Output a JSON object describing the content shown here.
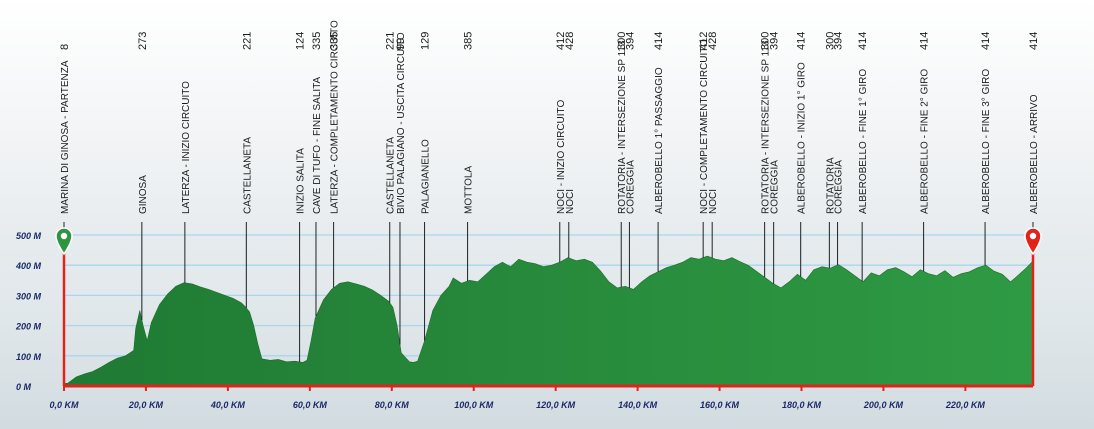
{
  "chart_data": {
    "type": "area",
    "x_unit": "KM",
    "y_unit": "M",
    "xlim": [
      0,
      236.5
    ],
    "ylim": [
      0,
      500
    ],
    "x_ticks": [
      {
        "value": 0,
        "label": "0,0 KM"
      },
      {
        "value": 20,
        "label": "20,0 KM"
      },
      {
        "value": 40,
        "label": "40,0 KM"
      },
      {
        "value": 60,
        "label": "60,0 KM"
      },
      {
        "value": 80,
        "label": "80,0 KM"
      },
      {
        "value": 100,
        "label": "100,0 KM"
      },
      {
        "value": 120,
        "label": "120,0 KM"
      },
      {
        "value": 140,
        "label": "140,0 KM"
      },
      {
        "value": 160,
        "label": "160,0 KM"
      },
      {
        "value": 180,
        "label": "180,0 KM"
      },
      {
        "value": 200,
        "label": "200,0 KM"
      },
      {
        "value": 220,
        "label": "220,0 KM"
      }
    ],
    "y_ticks": [
      {
        "value": 0,
        "label": "0 M"
      },
      {
        "value": 100,
        "label": "100 M"
      },
      {
        "value": 200,
        "label": "200 M"
      },
      {
        "value": 300,
        "label": "300 M"
      },
      {
        "value": 400,
        "label": "400 M"
      },
      {
        "value": 500,
        "label": "500 M"
      }
    ],
    "grid": true,
    "colors": {
      "fill": "#2e9440",
      "axis": "#e2231a",
      "grid": "#a9d5f0",
      "start": "#2e9440",
      "finish": "#e2231a"
    },
    "profile": [
      [
        0,
        8
      ],
      [
        1,
        10
      ],
      [
        3,
        30
      ],
      [
        5,
        40
      ],
      [
        7,
        48
      ],
      [
        9,
        62
      ],
      [
        11,
        78
      ],
      [
        13,
        92
      ],
      [
        15,
        100
      ],
      [
        17,
        118
      ],
      [
        17.5,
        190
      ],
      [
        18.5,
        250
      ],
      [
        19.3,
        200
      ],
      [
        20.3,
        150
      ],
      [
        21.3,
        210
      ],
      [
        23.3,
        270
      ],
      [
        25.3,
        305
      ],
      [
        27.3,
        330
      ],
      [
        29.3,
        342
      ],
      [
        31.3,
        338
      ],
      [
        33.3,
        328
      ],
      [
        35.3,
        320
      ],
      [
        37.3,
        310
      ],
      [
        39.3,
        300
      ],
      [
        41.3,
        290
      ],
      [
        43.3,
        275
      ],
      [
        44.3,
        262
      ],
      [
        45.3,
        245
      ],
      [
        46.3,
        200
      ],
      [
        47.3,
        140
      ],
      [
        48.3,
        90
      ],
      [
        50.3,
        85
      ],
      [
        52.3,
        88
      ],
      [
        54.3,
        80
      ],
      [
        56.3,
        82
      ],
      [
        58.3,
        78
      ],
      [
        59.3,
        85
      ],
      [
        60.3,
        150
      ],
      [
        61.3,
        225
      ],
      [
        63.3,
        285
      ],
      [
        65.3,
        320
      ],
      [
        67.3,
        340
      ],
      [
        69.3,
        345
      ],
      [
        71.3,
        338
      ],
      [
        73.3,
        330
      ],
      [
        75.3,
        318
      ],
      [
        77.3,
        300
      ],
      [
        79.3,
        280
      ],
      [
        80.3,
        260
      ],
      [
        81.3,
        200
      ],
      [
        82.3,
        110
      ],
      [
        84.3,
        80
      ],
      [
        85.3,
        78
      ],
      [
        86.3,
        82
      ],
      [
        88,
        150
      ],
      [
        90,
        250
      ],
      [
        92,
        300
      ],
      [
        94,
        330
      ],
      [
        95,
        358
      ],
      [
        97,
        340
      ],
      [
        99,
        350
      ],
      [
        101,
        345
      ],
      [
        103,
        370
      ],
      [
        105,
        395
      ],
      [
        107,
        410
      ],
      [
        109,
        395
      ],
      [
        111,
        420
      ],
      [
        113,
        410
      ],
      [
        115,
        405
      ],
      [
        117,
        395
      ],
      [
        119,
        400
      ],
      [
        121,
        410
      ],
      [
        123,
        425
      ],
      [
        125,
        415
      ],
      [
        127,
        420
      ],
      [
        129,
        410
      ],
      [
        131,
        380
      ],
      [
        133,
        345
      ],
      [
        135,
        325
      ],
      [
        137,
        330
      ],
      [
        139,
        320
      ],
      [
        141,
        345
      ],
      [
        143,
        365
      ],
      [
        145,
        378
      ],
      [
        147,
        392
      ],
      [
        149,
        400
      ],
      [
        151,
        410
      ],
      [
        153,
        425
      ],
      [
        155,
        420
      ],
      [
        157,
        430
      ],
      [
        159,
        420
      ],
      [
        161,
        415
      ],
      [
        163,
        425
      ],
      [
        165,
        412
      ],
      [
        167,
        400
      ],
      [
        169,
        380
      ],
      [
        171,
        360
      ],
      [
        173,
        340
      ],
      [
        175,
        325
      ],
      [
        177,
        345
      ],
      [
        179,
        370
      ],
      [
        181,
        350
      ],
      [
        183,
        385
      ],
      [
        185,
        395
      ],
      [
        187,
        390
      ],
      [
        189,
        402
      ],
      [
        191,
        385
      ],
      [
        193,
        365
      ],
      [
        195,
        345
      ],
      [
        197,
        375
      ],
      [
        199,
        365
      ],
      [
        201,
        385
      ],
      [
        203,
        392
      ],
      [
        205,
        378
      ],
      [
        207,
        362
      ],
      [
        209,
        385
      ],
      [
        211,
        372
      ],
      [
        213,
        365
      ],
      [
        215,
        382
      ],
      [
        217,
        360
      ],
      [
        219,
        372
      ],
      [
        221,
        378
      ],
      [
        223,
        392
      ],
      [
        225,
        400
      ],
      [
        227,
        380
      ],
      [
        229,
        370
      ],
      [
        231,
        345
      ],
      [
        233,
        368
      ],
      [
        235,
        393
      ],
      [
        236.5,
        414
      ]
    ],
    "markers": [
      {
        "km": 0,
        "label": "MARINA DI GINOSA - PARTENZA",
        "alt": [
          "8"
        ]
      },
      {
        "km": 19,
        "label": "GINOSA",
        "alt": [
          "273"
        ]
      },
      {
        "km": 29.5,
        "label": "LATERZA - INIZIO CIRCUITO",
        "alt": []
      },
      {
        "km": 44.5,
        "label": "CASTELLANETA",
        "alt": [
          "221"
        ]
      },
      {
        "km": 57.5,
        "label": "INIZIO SALITA",
        "alt": [
          "124"
        ]
      },
      {
        "km": 61.5,
        "label": "CAVE DI TUFO - FINE SALITA",
        "alt": [
          "335"
        ]
      },
      {
        "km": 65.8,
        "label": "LATERZA - COMPLETAMENTO CIRCUITO",
        "alt": [
          "335"
        ]
      },
      {
        "km": 79.5,
        "label": "CASTELLANETA",
        "alt": [
          "221"
        ]
      },
      {
        "km": 82,
        "label": "BIVIO PALAGIANO - USCITA CIRCUITO",
        "alt": [
          "99"
        ]
      },
      {
        "km": 88,
        "label": "PALAGIANELLO",
        "alt": [
          "129"
        ]
      },
      {
        "km": 98.5,
        "label": "MOTTOLA",
        "alt": [
          "385"
        ]
      },
      {
        "km": 121,
        "label": "NOCI - INIZIO CIRCUITO",
        "alt": [
          "412"
        ]
      },
      {
        "km": 123.2,
        "label": "NOCI",
        "alt": [
          "428"
        ]
      },
      {
        "km": 136,
        "label": "ROTATORIA - INTERSEZIONE SP 113",
        "alt": [
          "300"
        ]
      },
      {
        "km": 138,
        "label": "COREGGIA",
        "alt": [
          "394"
        ]
      },
      {
        "km": 145,
        "label": "ALBEROBELLO 1° PASSAGGIO",
        "alt": [
          "414"
        ]
      },
      {
        "km": 156,
        "label": "NOCI - COMPLETAMENTO CIRCUITO",
        "alt": [
          "412"
        ]
      },
      {
        "km": 158.2,
        "label": "NOCI",
        "alt": [
          "428"
        ]
      },
      {
        "km": 171,
        "label": "ROTATORIA - INTERSEZIONE SP 113",
        "alt": [
          "300"
        ]
      },
      {
        "km": 173.2,
        "label": "COREGGIA",
        "alt": [
          "394"
        ]
      },
      {
        "km": 179.8,
        "label": "ALBEROBELLO - INIZIO 1° GIRO",
        "alt": [
          "414"
        ]
      },
      {
        "km": 186.8,
        "label": "ROTATORIA",
        "alt": [
          "300"
        ]
      },
      {
        "km": 188.8,
        "label": "COREGGIA",
        "alt": [
          "394"
        ]
      },
      {
        "km": 194.8,
        "label": "ALBEROBELLO - FINE 1° GIRO",
        "alt": [
          "414"
        ]
      },
      {
        "km": 209.8,
        "label": "ALBEROBELLO - FINE 2° GIRO",
        "alt": [
          "414"
        ]
      },
      {
        "km": 224.8,
        "label": "ALBEROBELLO - FINE 3° GIRO",
        "alt": [
          "414"
        ]
      },
      {
        "km": 236.5,
        "label": "ALBEROBELLO - ARRIVO",
        "alt": [
          "414"
        ]
      }
    ]
  }
}
